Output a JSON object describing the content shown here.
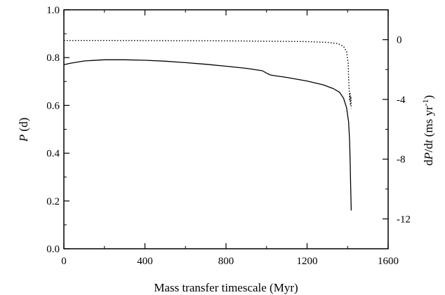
{
  "chart_data": {
    "type": "line",
    "title": "",
    "xlabel": "Mass transfer timescale (Myr)",
    "ylabel_left": {
      "sym": "P",
      "unit": " (d)"
    },
    "ylabel_right": {
      "pre": "d",
      "sym1": "P",
      "mid": "/d",
      "sym2": "t",
      "unit": " (ms yr",
      "sup": "-1",
      "close": ")"
    },
    "xlim": [
      0,
      1600
    ],
    "ylim_left": [
      0,
      1.0
    ],
    "ylim_right": [
      -14,
      2
    ],
    "xticks": [
      "0",
      "400",
      "800",
      "1200",
      "1600"
    ],
    "yticks_left": [
      "0.0",
      "0.2",
      "0.4",
      "0.6",
      "0.8",
      "1.0"
    ],
    "yticks_right": [
      "0",
      "-4",
      "-8",
      "-12"
    ],
    "series": [
      {
        "axis": "left",
        "style": "solid",
        "x": [
          0,
          30,
          100,
          200,
          300,
          400,
          500,
          600,
          700,
          800,
          900,
          980,
          1000,
          1020,
          1100,
          1200,
          1280,
          1330,
          1360,
          1380,
          1395,
          1405,
          1410,
          1413,
          1415,
          1418
        ],
        "y": [
          0.77,
          0.776,
          0.786,
          0.791,
          0.791,
          0.789,
          0.785,
          0.779,
          0.772,
          0.764,
          0.755,
          0.745,
          0.735,
          0.727,
          0.717,
          0.702,
          0.686,
          0.67,
          0.655,
          0.63,
          0.59,
          0.53,
          0.45,
          0.35,
          0.26,
          0.16
        ]
      },
      {
        "axis": "right",
        "style": "dotted",
        "x": [
          0,
          200,
          400,
          600,
          800,
          1000,
          1200,
          1300,
          1350,
          1380,
          1395,
          1403,
          1405,
          1408,
          1410,
          1412,
          1414,
          1416,
          1418
        ],
        "y": [
          -0.05,
          -0.05,
          -0.06,
          -0.07,
          -0.08,
          -0.1,
          -0.13,
          -0.18,
          -0.25,
          -0.45,
          -0.8,
          -1.6,
          -2.6,
          -3.5,
          -4.1,
          -3.6,
          -4.4,
          -3.8,
          -4.6
        ]
      }
    ]
  }
}
